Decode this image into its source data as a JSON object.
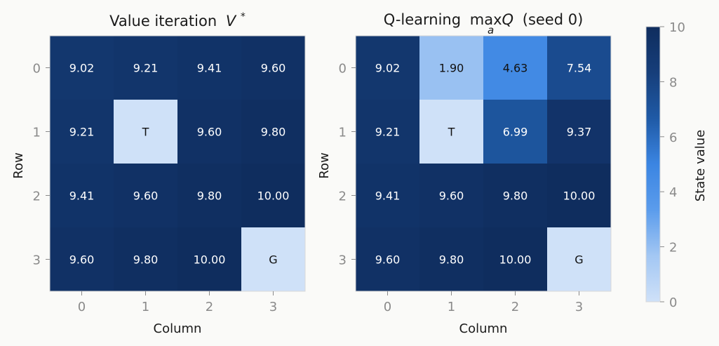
{
  "chart_data": [
    {
      "type": "heatmap",
      "title": "Value iteration V*",
      "title_main": "Value iteration",
      "title_symbol": "V",
      "title_superscript": "*",
      "xlabel": "Column",
      "ylabel": "Row",
      "x_ticks": [
        "0",
        "1",
        "2",
        "3"
      ],
      "y_ticks": [
        "0",
        "1",
        "2",
        "3"
      ],
      "values": [
        [
          9.02,
          9.21,
          9.41,
          9.6
        ],
        [
          9.21,
          null,
          9.6,
          9.8
        ],
        [
          9.41,
          9.6,
          9.8,
          10.0
        ],
        [
          9.6,
          9.8,
          10.0,
          null
        ]
      ],
      "labels": [
        [
          "9.02",
          "9.21",
          "9.41",
          "9.60"
        ],
        [
          "9.21",
          "T",
          "9.60",
          "9.80"
        ],
        [
          "9.41",
          "9.60",
          "9.80",
          "10.00"
        ],
        [
          "9.60",
          "9.80",
          "10.00",
          "G"
        ]
      ]
    },
    {
      "type": "heatmap",
      "title": "Q-learning max_a Q (seed 0)",
      "title_prefix": "Q-learning",
      "title_max": "max",
      "title_subscript": "a",
      "title_symbol": "Q",
      "title_suffix": "(seed 0)",
      "xlabel": "Column",
      "ylabel": "Row",
      "x_ticks": [
        "0",
        "1",
        "2",
        "3"
      ],
      "y_ticks": [
        "0",
        "1",
        "2",
        "3"
      ],
      "values": [
        [
          9.02,
          1.9,
          4.63,
          7.54
        ],
        [
          9.21,
          null,
          6.99,
          9.37
        ],
        [
          9.41,
          9.6,
          9.8,
          10.0
        ],
        [
          9.6,
          9.8,
          10.0,
          null
        ]
      ],
      "labels": [
        [
          "9.02",
          "1.90",
          "4.63",
          "7.54"
        ],
        [
          "9.21",
          "T",
          "6.99",
          "9.37"
        ],
        [
          "9.41",
          "9.60",
          "9.80",
          "10.00"
        ],
        [
          "9.60",
          "9.80",
          "10.00",
          "G"
        ]
      ]
    }
  ],
  "colorbar": {
    "label": "State value",
    "range": [
      0,
      10
    ],
    "ticks": [
      "0",
      "2",
      "4",
      "6",
      "8",
      "10"
    ],
    "tick_values": [
      0,
      2,
      4,
      6,
      8,
      10
    ],
    "colormap": [
      "#cfe1f8",
      "#a3c7f3",
      "#5b9cec",
      "#3b85e2",
      "#1f5aa6",
      "#163e7a",
      "#0f2d5e"
    ]
  },
  "colors": {
    "background": "#fafaf8",
    "special_cell": "#cfe1f8",
    "light_text": "#ffffff",
    "dark_text": "#111111"
  }
}
